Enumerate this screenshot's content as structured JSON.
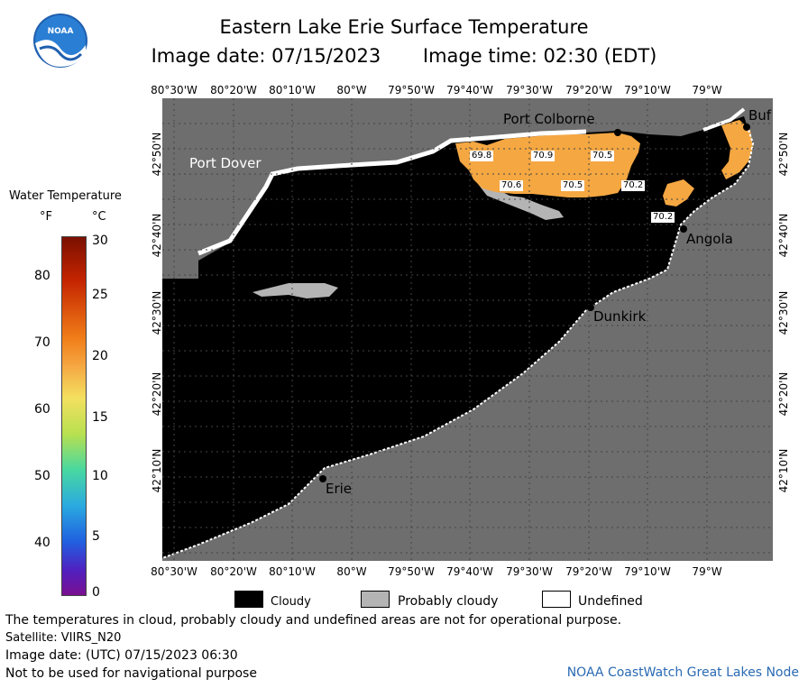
{
  "header": {
    "title": "Eastern Lake Erie Surface Temperature",
    "image_date": "Image date: 07/15/2023",
    "image_time": "Image time: 02:30 (EDT)"
  },
  "logo": {
    "text": "NOAA"
  },
  "map": {
    "lon_labels": [
      "80°30'W",
      "80°20'W",
      "80°10'W",
      "80°W",
      "79°50'W",
      "79°40'W",
      "79°30'W",
      "79°20'W",
      "79°10'W",
      "79°W"
    ],
    "lat_labels": [
      "42°50'N",
      "42°40'N",
      "42°30'N",
      "42°20'N",
      "42°10'N"
    ],
    "places": [
      "Port Colborne",
      "Port Dover",
      "Buf",
      "Angola",
      "Dunkirk",
      "Erie"
    ],
    "temperatures": [
      "69.8",
      "70.9",
      "70.5",
      "70.6",
      "70.5",
      "70.2",
      "70.2"
    ],
    "colors": {
      "cloud": "#000000",
      "land": "#6e6e6e",
      "probably_cloudy": "#b4b4b4",
      "warm": "#f5a742"
    }
  },
  "scale": {
    "title": "Water Temperature",
    "unit_f": "°F",
    "unit_c": "°C",
    "ticks_f": [
      "80",
      "70",
      "60",
      "50",
      "40"
    ],
    "ticks_c": [
      "30",
      "25",
      "20",
      "15",
      "10",
      "5",
      "0"
    ]
  },
  "legend": {
    "cloudy": "Cloudy",
    "probably_cloudy": "Probably cloudy",
    "undefined": "Undefined"
  },
  "footer": {
    "line1": "The temperatures in cloud, probably cloudy and undefined areas are not for operational purpose.",
    "line2": "Satellite: VIIRS_N20",
    "line3": "Image date: (UTC) 07/15/2023  06:30",
    "line4": "Not to be used for navigational purpose",
    "credit": "NOAA CoastWatch Great Lakes Node"
  }
}
